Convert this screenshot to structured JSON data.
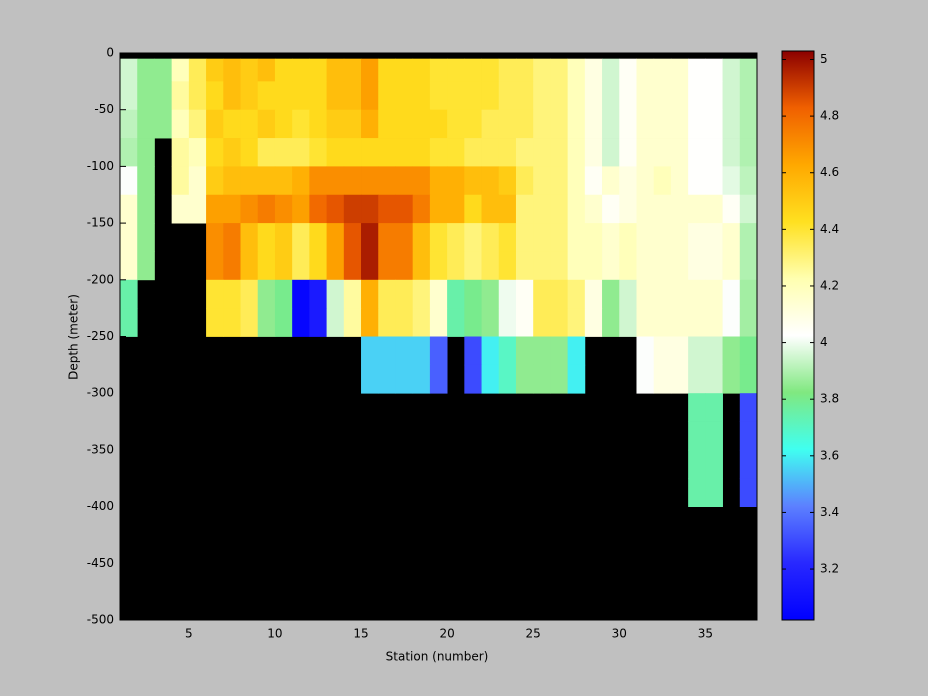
{
  "chart_data": {
    "type": "heatmap",
    "xlabel": "Station (number)",
    "ylabel": "Depth (meter)",
    "x": [
      1,
      2,
      3,
      4,
      5,
      6,
      7,
      8,
      9,
      10,
      11,
      12,
      13,
      14,
      15,
      16,
      17,
      18,
      19,
      20,
      21,
      22,
      23,
      24,
      25,
      26,
      27,
      28,
      29,
      30,
      31,
      32,
      33,
      34,
      35,
      36,
      37,
      38
    ],
    "y": [
      0,
      -5,
      -25,
      -50,
      -75,
      -100,
      -125,
      -150,
      -175,
      -200,
      -225,
      -250,
      -275,
      -300,
      -325,
      -350,
      -375,
      -400,
      -425,
      -450,
      -475,
      -500
    ],
    "xlim": [
      1,
      38
    ],
    "ylim": [
      -500,
      0
    ],
    "xticks": [
      5,
      10,
      15,
      20,
      25,
      30,
      35
    ],
    "yticks": [
      0,
      -50,
      -100,
      -150,
      -200,
      -250,
      -300,
      -350,
      -400,
      -450,
      -500
    ],
    "clim": [
      3.02,
      5.03
    ],
    "cticks": [
      3.2,
      3.4,
      3.6,
      3.8,
      4,
      4.2,
      4.4,
      4.6,
      4.8,
      5
    ],
    "colormap": [
      "#0000ff",
      "#2828ff",
      "#5c80ff",
      "#40fff0",
      "#80e880",
      "#ffffff",
      "#ffffb0",
      "#ffe020",
      "#ffa800",
      "#f06000",
      "#8c0000"
    ],
    "null_color": "#000000",
    "z": [
      [
        null,
        null,
        null,
        null,
        null,
        null,
        null,
        null,
        null,
        null,
        null,
        null,
        null,
        null,
        null,
        null,
        null,
        null,
        null,
        null,
        null,
        null,
        null,
        null,
        null,
        null,
        null,
        null,
        null,
        null,
        null,
        null,
        null,
        null,
        null,
        null,
        null
      ],
      [
        3.95,
        3.85,
        3.85,
        4.2,
        4.35,
        4.5,
        4.55,
        4.5,
        4.55,
        4.45,
        4.45,
        4.45,
        4.55,
        4.55,
        4.65,
        4.45,
        4.45,
        4.45,
        4.4,
        4.4,
        4.4,
        4.4,
        4.35,
        4.35,
        4.3,
        4.3,
        4.2,
        4.1,
        3.95,
        4.05,
        4.15,
        4.15,
        4.15,
        4.03,
        4.03,
        3.95,
        3.9
      ],
      [
        3.95,
        3.85,
        3.85,
        4.25,
        4.35,
        4.45,
        4.55,
        4.5,
        4.45,
        4.45,
        4.45,
        4.45,
        4.55,
        4.55,
        4.65,
        4.45,
        4.45,
        4.45,
        4.4,
        4.4,
        4.4,
        4.4,
        4.35,
        4.35,
        4.3,
        4.3,
        4.2,
        4.1,
        3.95,
        4.05,
        4.15,
        4.15,
        4.15,
        4.03,
        4.03,
        3.95,
        3.9
      ],
      [
        3.92,
        3.85,
        3.85,
        4.2,
        4.3,
        4.5,
        4.45,
        4.45,
        4.5,
        4.45,
        4.4,
        4.45,
        4.5,
        4.5,
        4.6,
        4.45,
        4.45,
        4.45,
        4.45,
        4.4,
        4.4,
        4.35,
        4.35,
        4.35,
        4.3,
        4.3,
        4.2,
        4.1,
        3.95,
        4.05,
        4.15,
        4.15,
        4.15,
        4.03,
        4.03,
        3.95,
        3.9
      ],
      [
        3.9,
        3.85,
        null,
        4.25,
        4.2,
        4.45,
        4.5,
        4.45,
        4.35,
        4.35,
        4.35,
        4.4,
        4.45,
        4.45,
        4.45,
        4.45,
        4.45,
        4.45,
        4.4,
        4.4,
        4.35,
        4.35,
        4.35,
        4.3,
        4.3,
        4.3,
        4.2,
        4.1,
        3.95,
        4.05,
        4.15,
        4.15,
        4.15,
        4.03,
        4.03,
        3.95,
        3.9
      ],
      [
        4.02,
        3.85,
        null,
        4.25,
        4.15,
        4.5,
        4.55,
        4.55,
        4.55,
        4.55,
        4.6,
        4.7,
        4.7,
        4.7,
        4.7,
        4.7,
        4.7,
        4.7,
        4.6,
        4.6,
        4.55,
        4.55,
        4.5,
        4.35,
        4.3,
        4.3,
        4.2,
        4.05,
        4.15,
        4.1,
        4.15,
        4.2,
        4.15,
        4.03,
        4.03,
        3.98,
        3.92
      ],
      [
        4.15,
        3.85,
        null,
        4.15,
        4.15,
        4.65,
        4.65,
        4.7,
        4.75,
        4.7,
        4.65,
        4.8,
        4.85,
        4.9,
        4.9,
        4.85,
        4.85,
        4.75,
        4.6,
        4.6,
        4.45,
        4.55,
        4.55,
        4.3,
        4.3,
        4.3,
        4.2,
        4.15,
        4.05,
        4.1,
        4.15,
        4.15,
        4.15,
        4.15,
        4.15,
        4.05,
        3.95
      ],
      [
        4.15,
        3.85,
        null,
        null,
        null,
        4.7,
        4.75,
        4.55,
        4.45,
        4.5,
        4.35,
        4.45,
        4.65,
        4.85,
        4.97,
        4.75,
        4.75,
        4.55,
        4.4,
        4.35,
        4.3,
        4.35,
        4.4,
        4.3,
        4.3,
        4.3,
        4.2,
        4.2,
        4.15,
        4.2,
        4.15,
        4.15,
        4.15,
        4.1,
        4.1,
        4.15,
        3.9
      ],
      [
        4.15,
        3.85,
        null,
        null,
        null,
        4.7,
        4.75,
        4.55,
        4.45,
        4.5,
        4.35,
        4.45,
        4.65,
        4.85,
        4.97,
        4.75,
        4.75,
        4.55,
        4.4,
        4.35,
        4.3,
        4.35,
        4.4,
        4.3,
        4.3,
        4.3,
        4.2,
        4.2,
        4.15,
        4.2,
        4.15,
        4.15,
        4.15,
        4.1,
        4.1,
        4.15,
        3.9
      ],
      [
        3.75,
        null,
        null,
        null,
        null,
        4.4,
        4.4,
        4.35,
        3.85,
        3.8,
        3.05,
        3.15,
        3.95,
        4.25,
        4.6,
        4.35,
        4.35,
        4.3,
        4.15,
        3.75,
        3.8,
        3.85,
        4.0,
        4.05,
        4.35,
        4.35,
        4.3,
        4.1,
        3.85,
        3.95,
        4.15,
        4.15,
        4.15,
        4.15,
        4.15,
        4.02,
        3.88
      ],
      [
        3.75,
        null,
        null,
        null,
        null,
        4.4,
        4.4,
        4.35,
        3.85,
        3.8,
        3.05,
        3.15,
        3.95,
        4.25,
        4.6,
        4.35,
        4.35,
        4.3,
        4.15,
        3.75,
        3.8,
        3.85,
        4.0,
        4.05,
        4.35,
        4.35,
        4.3,
        4.1,
        3.85,
        3.95,
        4.15,
        4.15,
        4.15,
        4.15,
        4.15,
        4.02,
        3.88
      ],
      [
        null,
        null,
        null,
        null,
        null,
        null,
        null,
        null,
        null,
        null,
        null,
        null,
        null,
        null,
        3.55,
        3.55,
        3.55,
        3.55,
        3.35,
        null,
        3.3,
        3.6,
        3.7,
        3.85,
        3.85,
        3.85,
        3.6,
        null,
        null,
        null,
        4.02,
        4.1,
        4.1,
        3.95,
        3.95,
        3.85,
        3.8
      ],
      [
        null,
        null,
        null,
        null,
        null,
        null,
        null,
        null,
        null,
        null,
        null,
        null,
        null,
        null,
        3.55,
        3.55,
        3.55,
        3.55,
        3.35,
        null,
        3.3,
        3.6,
        3.7,
        3.85,
        3.85,
        3.85,
        3.6,
        null,
        null,
        null,
        4.02,
        4.1,
        4.1,
        3.95,
        3.95,
        3.85,
        3.8
      ],
      [
        null,
        null,
        null,
        null,
        null,
        null,
        null,
        null,
        null,
        null,
        null,
        null,
        null,
        null,
        null,
        null,
        null,
        null,
        null,
        null,
        null,
        null,
        null,
        null,
        null,
        null,
        null,
        null,
        null,
        null,
        null,
        null,
        null,
        3.75,
        3.75,
        null,
        3.3
      ],
      [
        null,
        null,
        null,
        null,
        null,
        null,
        null,
        null,
        null,
        null,
        null,
        null,
        null,
        null,
        null,
        null,
        null,
        null,
        null,
        null,
        null,
        null,
        null,
        null,
        null,
        null,
        null,
        null,
        null,
        null,
        null,
        null,
        null,
        3.75,
        3.75,
        null,
        3.3
      ],
      [
        null,
        null,
        null,
        null,
        null,
        null,
        null,
        null,
        null,
        null,
        null,
        null,
        null,
        null,
        null,
        null,
        null,
        null,
        null,
        null,
        null,
        null,
        null,
        null,
        null,
        null,
        null,
        null,
        null,
        null,
        null,
        null,
        null,
        3.75,
        3.75,
        null,
        3.3
      ],
      [
        null,
        null,
        null,
        null,
        null,
        null,
        null,
        null,
        null,
        null,
        null,
        null,
        null,
        null,
        null,
        null,
        null,
        null,
        null,
        null,
        null,
        null,
        null,
        null,
        null,
        null,
        null,
        null,
        null,
        null,
        null,
        null,
        null,
        3.75,
        3.75,
        null,
        3.3
      ],
      [
        null,
        null,
        null,
        null,
        null,
        null,
        null,
        null,
        null,
        null,
        null,
        null,
        null,
        null,
        null,
        null,
        null,
        null,
        null,
        null,
        null,
        null,
        null,
        null,
        null,
        null,
        null,
        null,
        null,
        null,
        null,
        null,
        null,
        null,
        null,
        null,
        null
      ],
      [
        null,
        null,
        null,
        null,
        null,
        null,
        null,
        null,
        null,
        null,
        null,
        null,
        null,
        null,
        null,
        null,
        null,
        null,
        null,
        null,
        null,
        null,
        null,
        null,
        null,
        null,
        null,
        null,
        null,
        null,
        null,
        null,
        null,
        null,
        null,
        null,
        null
      ],
      [
        null,
        null,
        null,
        null,
        null,
        null,
        null,
        null,
        null,
        null,
        null,
        null,
        null,
        null,
        null,
        null,
        null,
        null,
        null,
        null,
        null,
        null,
        null,
        null,
        null,
        null,
        null,
        null,
        null,
        null,
        null,
        null,
        null,
        null,
        null,
        null,
        null
      ],
      [
        null,
        null,
        null,
        null,
        null,
        null,
        null,
        null,
        null,
        null,
        null,
        null,
        null,
        null,
        null,
        null,
        null,
        null,
        null,
        null,
        null,
        null,
        null,
        null,
        null,
        null,
        null,
        null,
        null,
        null,
        null,
        null,
        null,
        null,
        null,
        null,
        null
      ]
    ]
  }
}
